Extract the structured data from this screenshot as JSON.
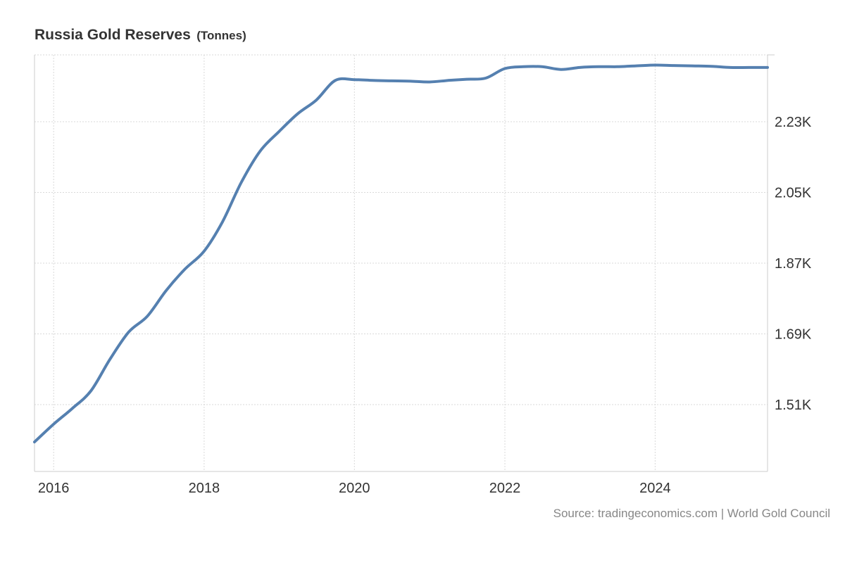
{
  "header": {
    "title": "Russia Gold Reserves",
    "unit": "(Tonnes)"
  },
  "source": "Source: tradingeconomics.com | World Gold Council",
  "colors": {
    "line": "#5580b0",
    "grid": "#d9d9d9",
    "axis": "#cccccc",
    "text": "#333333"
  },
  "chart_data": {
    "type": "line",
    "title": "Russia Gold Reserves",
    "unit": "Tonnes",
    "xlabel": "",
    "ylabel": "",
    "x_tick_labels": [
      "2016",
      "2018",
      "2020",
      "2022",
      "2024"
    ],
    "y_tick_labels": [
      "1.51K",
      "1.69K",
      "1.87K",
      "2.05K",
      "2.23K"
    ],
    "y_tick_values": [
      1510,
      1690,
      1870,
      2050,
      2230
    ],
    "xlim": [
      "2015-09-30",
      "2025-06-30"
    ],
    "ylim": [
      1340,
      2400
    ],
    "grid": true,
    "y_axis_side": "right",
    "series": [
      {
        "x": [
          "2015-09-30",
          "2015-12-31",
          "2016-03-31",
          "2016-06-30",
          "2016-09-30",
          "2016-12-31",
          "2017-03-31",
          "2017-06-30",
          "2017-09-30",
          "2017-12-31",
          "2018-03-31",
          "2018-06-30",
          "2018-09-30",
          "2018-12-31",
          "2019-03-31",
          "2019-06-30",
          "2019-09-30",
          "2019-12-31",
          "2020-03-31",
          "2020-06-30",
          "2020-09-30",
          "2020-12-31",
          "2021-03-31",
          "2021-06-30",
          "2021-09-30",
          "2021-12-31",
          "2022-03-31",
          "2022-06-30",
          "2022-09-30",
          "2022-12-31",
          "2023-03-31",
          "2023-06-30",
          "2023-09-30",
          "2023-12-31",
          "2024-03-31",
          "2024-06-30",
          "2024-09-30",
          "2024-12-31",
          "2025-03-31",
          "2025-06-30"
        ],
        "values": [
          1415,
          1460,
          1500,
          1545,
          1625,
          1695,
          1735,
          1800,
          1855,
          1900,
          1975,
          2075,
          2155,
          2205,
          2250,
          2285,
          2335,
          2337,
          2335,
          2334,
          2333,
          2331,
          2335,
          2338,
          2341,
          2365,
          2370,
          2370,
          2363,
          2368,
          2370,
          2370,
          2372,
          2374,
          2373,
          2372,
          2371,
          2368,
          2368,
          2368
        ]
      }
    ]
  }
}
